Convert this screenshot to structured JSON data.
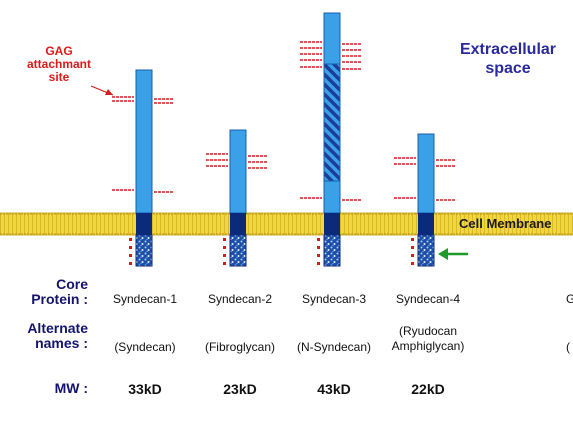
{
  "gag_label": {
    "line1": "GAG",
    "line2": "attachmant",
    "line3": "site"
  },
  "extracellular": {
    "line1": "Extracellular",
    "line2": "space"
  },
  "membrane_label": "Cell Membrane",
  "row_heads": {
    "core_line1": "Core",
    "core_line2": "Protein :",
    "alt_line1": "Alternate",
    "alt_line2": "names :",
    "mw": "MW :"
  },
  "syndecans": [
    {
      "name": "Syndecan-1",
      "alt": "(Syndecan)",
      "alt2": "",
      "mw": "33kD"
    },
    {
      "name": "Syndecan-2",
      "alt": "(Fibroglycan)",
      "alt2": "",
      "mw": "23kD"
    },
    {
      "name": "Syndecan-3",
      "alt": "(N-Syndecan)",
      "alt2": "",
      "mw": "43kD"
    },
    {
      "name": "Syndecan-4",
      "alt": "(Ryudocan",
      "alt2": "Amphiglycan)",
      "mw": "22kD"
    }
  ],
  "cut_off": {
    "core": "G",
    "alt": "("
  },
  "colors": {
    "core_fill": "#3aa0e8",
    "core_edge": "#1a5fa8",
    "tm_domain": "#0b2a7a",
    "membrane": "#f2d640",
    "gag": "#d81b1b",
    "arrow": "#1e9b2a",
    "title_blue": "#2a2a9e"
  },
  "icons": {
    "arrow": "left-arrow-icon"
  }
}
